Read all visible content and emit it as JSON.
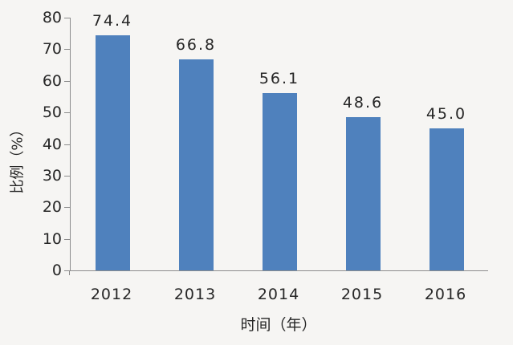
{
  "chart_data": {
    "type": "bar",
    "title": "",
    "categories": [
      "2012",
      "2013",
      "2014",
      "2015",
      "2016"
    ],
    "values": [
      74.4,
      66.8,
      56.1,
      48.6,
      45.0
    ],
    "data_labels": [
      "74.4",
      "66.8",
      "56.1",
      "48.6",
      "45.0"
    ],
    "xlabel": "时间（年）",
    "ylabel": "比例（%）",
    "ylim": [
      0,
      80
    ],
    "ytick_interval": 10,
    "yticks": [
      0,
      10,
      20,
      30,
      40,
      50,
      60,
      70,
      80
    ],
    "grid": false,
    "legend_position": "none",
    "colors": {
      "bar": "#4f81bd",
      "axis": "#8c8c8c",
      "text": "#262626",
      "background": "#f6f5f3"
    }
  }
}
